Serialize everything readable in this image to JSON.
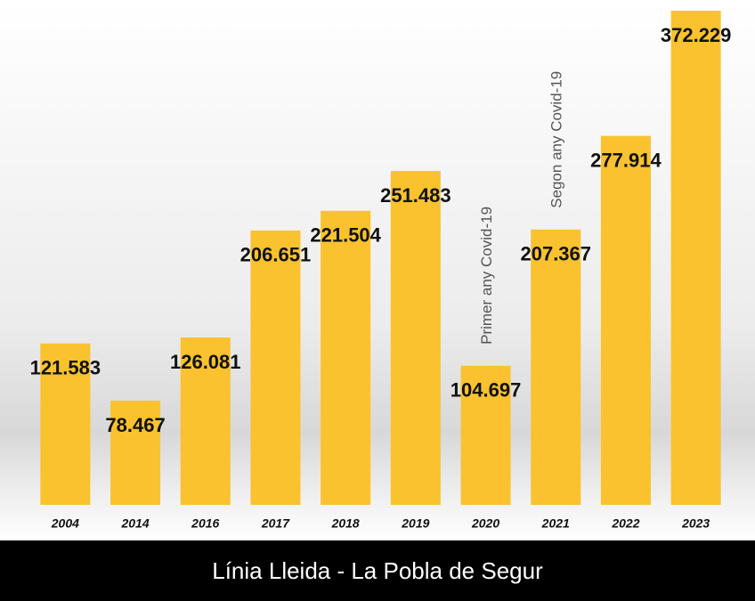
{
  "chart_data": {
    "type": "bar",
    "title": "Línia Lleida - La Pobla de Segur",
    "categories": [
      "2004",
      "2014",
      "2016",
      "2017",
      "2018",
      "2019",
      "2020",
      "2021",
      "2022",
      "2023"
    ],
    "values": [
      121583,
      78467,
      126081,
      206651,
      221504,
      251483,
      104697,
      207367,
      277914,
      372229
    ],
    "value_labels": [
      "121.583",
      "78.467",
      "126.081",
      "206.651",
      "221.504",
      "251.483",
      "104.697",
      "207.367",
      "277.914",
      "372.229"
    ],
    "color": "#f9c22e",
    "annotations": [
      {
        "text": "Primer any Covid-19",
        "category": "2020"
      },
      {
        "text": "Segon any Covid-19",
        "category": "2021"
      }
    ]
  }
}
